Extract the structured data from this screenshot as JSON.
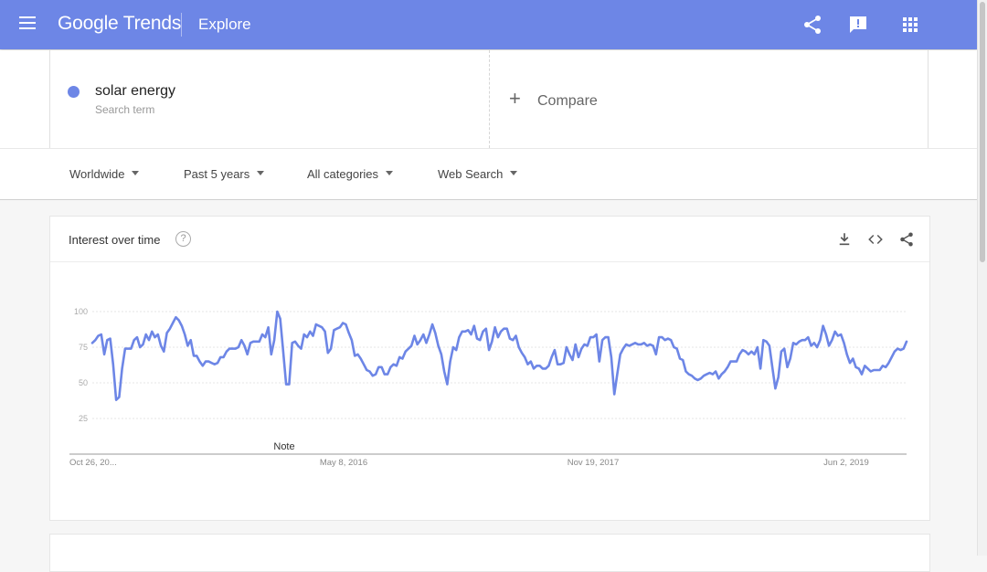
{
  "header": {
    "logo": "Google Trends",
    "section": "Explore",
    "icons": [
      "menu-icon",
      "share-icon",
      "feedback-icon",
      "apps-icon"
    ],
    "color": "#6d86e6"
  },
  "search": {
    "term": "solar energy",
    "term_type": "Search term",
    "term_color": "#6d86e6",
    "compare_label": "Compare"
  },
  "filters": {
    "region": "Worldwide",
    "period": "Past 5 years",
    "category": "All categories",
    "property": "Web Search"
  },
  "card": {
    "title": "Interest over time",
    "help": "?",
    "icons": [
      "download-icon",
      "embed-icon",
      "share-icon"
    ]
  },
  "chart_data": {
    "type": "line",
    "x_labels": [
      "Oct 26, 20...",
      "May 8, 2016",
      "Nov 19, 2017",
      "Jun 2, 2019"
    ],
    "y_ticks": [
      25,
      50,
      75,
      100
    ],
    "ylim": [
      0,
      100
    ],
    "note_label": "Note",
    "grid": true,
    "color": "#6d86e6",
    "series": [
      {
        "values": [
          78,
          80,
          83,
          84,
          70,
          80,
          81,
          63,
          38,
          40,
          60,
          74,
          74,
          74,
          80,
          82,
          75,
          77,
          84,
          80,
          86,
          82,
          84,
          76,
          72,
          85,
          88,
          92,
          96,
          94,
          90,
          84,
          76,
          80,
          69,
          69,
          65,
          62,
          65,
          65,
          64,
          63,
          64,
          68,
          68,
          72,
          74,
          74,
          74,
          75,
          80,
          76,
          70,
          78,
          79,
          79,
          79,
          84,
          82,
          89,
          70,
          80,
          100,
          95,
          72,
          49,
          49,
          78,
          79,
          76,
          74,
          84,
          82,
          86,
          83,
          91,
          90,
          89,
          86,
          71,
          74,
          87,
          88,
          89,
          92,
          91,
          85,
          80,
          69,
          70,
          67,
          63,
          59,
          58,
          55,
          56,
          61,
          61,
          56,
          56,
          61,
          63,
          62,
          68,
          67,
          72,
          74,
          76,
          83,
          77,
          80,
          84,
          78,
          84,
          91,
          85,
          76,
          70,
          58,
          49,
          65,
          75,
          73,
          82,
          86,
          86,
          87,
          84,
          90,
          81,
          80,
          86,
          88,
          73,
          79,
          89,
          82,
          86,
          88,
          88,
          81,
          80,
          83,
          75,
          71,
          68,
          63,
          65,
          60,
          62,
          62,
          60,
          60,
          62,
          68,
          73,
          63,
          63,
          64,
          75,
          70,
          66,
          77,
          68,
          74,
          77,
          76,
          82,
          82,
          84,
          65,
          80,
          82,
          82,
          68,
          42,
          56,
          70,
          74,
          77,
          76,
          77,
          78,
          77,
          77,
          78,
          76,
          77,
          76,
          70,
          82,
          82,
          80,
          81,
          80,
          75,
          74,
          67,
          66,
          58,
          56,
          55,
          53,
          52,
          53,
          55,
          56,
          57,
          56,
          58,
          53,
          56,
          58,
          61,
          65,
          65,
          65,
          70,
          73,
          72,
          70,
          72,
          70,
          75,
          60,
          80,
          79,
          76,
          61,
          46,
          54,
          72,
          74,
          61,
          67,
          78,
          77,
          79,
          80,
          80,
          82,
          76,
          78,
          75,
          80,
          90,
          84,
          76,
          80,
          86,
          83,
          84,
          78,
          70,
          64,
          67,
          61,
          60,
          56,
          62,
          60,
          58,
          59,
          59,
          59,
          62,
          61,
          64,
          68,
          72,
          74,
          73,
          74,
          79
        ]
      }
    ]
  }
}
